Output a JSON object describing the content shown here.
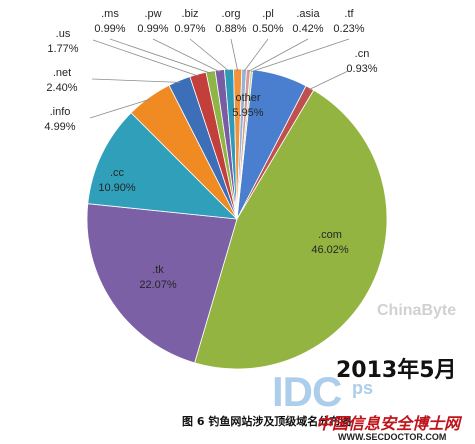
{
  "chart_data": {
    "type": "pie",
    "slices": [
      {
        "label": "other",
        "value": 5.95,
        "value_text": "5.95%",
        "color": "#4a7fd0"
      },
      {
        "label": ".cn",
        "value": 0.93,
        "value_text": "0.93%",
        "color": "#c0504d"
      },
      {
        "label": ".com",
        "value": 46.02,
        "value_text": "46.02%",
        "color": "#93b441"
      },
      {
        "label": ".tk",
        "value": 22.07,
        "value_text": "22.07%",
        "color": "#7c60a6"
      },
      {
        "label": ".cc",
        "value": 10.9,
        "value_text": "10.90%",
        "color": "#2f9fba"
      },
      {
        "label": ".info",
        "value": 4.99,
        "value_text": "4.99%",
        "color": "#f08a22"
      },
      {
        "label": ".net",
        "value": 2.4,
        "value_text": "2.40%",
        "color": "#3d6fb8"
      },
      {
        "label": ".us",
        "value": 1.77,
        "value_text": "1.77%",
        "color": "#c33f3c"
      },
      {
        "label": ".ms",
        "value": 0.99,
        "value_text": "0.99%",
        "color": "#8db646"
      },
      {
        "label": ".pw",
        "value": 0.99,
        "value_text": "0.99%",
        "color": "#7a5ca4"
      },
      {
        "label": ".biz",
        "value": 0.97,
        "value_text": "0.97%",
        "color": "#2d9bb8"
      },
      {
        "label": ".org",
        "value": 0.88,
        "value_text": "0.88%",
        "color": "#f2923a"
      },
      {
        "label": ".pl",
        "value": 0.5,
        "value_text": "0.50%",
        "color": "#95b3d7"
      },
      {
        "label": ".asia",
        "value": 0.42,
        "value_text": "0.42%",
        "color": "#d99795"
      },
      {
        "label": ".tf",
        "value": 0.23,
        "value_text": "0.23%",
        "color": "#c3d69b"
      }
    ],
    "title": "",
    "legend": "none",
    "annotation": "2013年5月"
  },
  "caption": "图 6  钓鱼网站涉及顶级域名分布图",
  "watermarks": {
    "idc": "IDC",
    "ps": "ps",
    "chinabyte": "ChinaByte",
    "site": "WWW.SECDOCTOR.COM",
    "red_mark": "中国信息安全博士网"
  }
}
